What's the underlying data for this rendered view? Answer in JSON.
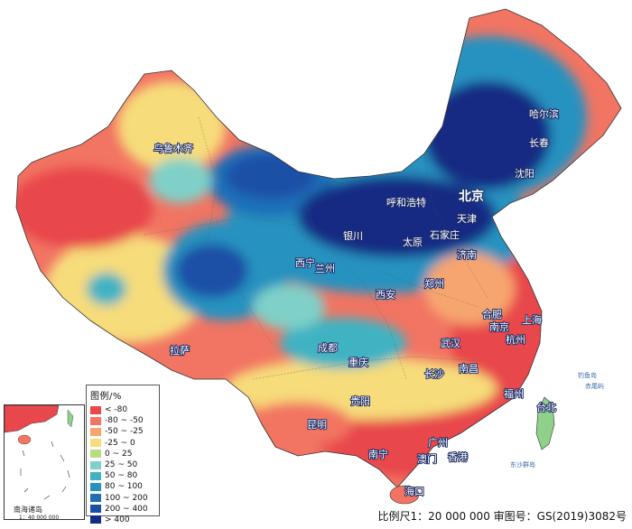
{
  "legend": {
    "title": "图例/%",
    "items": [
      {
        "label": "< -80",
        "color": "#e8474c"
      },
      {
        "label": "-80 ~ -50",
        "color": "#f27462"
      },
      {
        "label": "-50 ~ -25",
        "color": "#f7a56e"
      },
      {
        "label": "-25 ~ 0",
        "color": "#f6dc7a"
      },
      {
        "label": "0 ~ 25",
        "color": "#b9dc82"
      },
      {
        "label": "25 ~ 50",
        "color": "#7fd0c8"
      },
      {
        "label": "50 ~ 80",
        "color": "#3fb3c2"
      },
      {
        "label": "80 ~ 100",
        "color": "#2592c0"
      },
      {
        "label": "100 ~ 200",
        "color": "#1f6fb8"
      },
      {
        "label": "200 ~ 400",
        "color": "#1a4fa6"
      },
      {
        "label": "> 400",
        "color": "#132c84"
      }
    ]
  },
  "cities": [
    {
      "id": "beijing",
      "label": "北京",
      "big": true
    },
    {
      "id": "tianjin",
      "label": "天津"
    },
    {
      "id": "shijiazhuang",
      "label": "石家庄"
    },
    {
      "id": "taiyuan",
      "label": "太原"
    },
    {
      "id": "hohhot",
      "label": "呼和浩特"
    },
    {
      "id": "jinan",
      "label": "济南"
    },
    {
      "id": "yinchuan",
      "label": "银川"
    },
    {
      "id": "xining",
      "label": "西宁"
    },
    {
      "id": "lanzhou",
      "label": "兰州"
    },
    {
      "id": "xian",
      "label": "西安"
    },
    {
      "id": "zhengzhou",
      "label": "郑州"
    },
    {
      "id": "hefei",
      "label": "合肥"
    },
    {
      "id": "nanjing",
      "label": "南京"
    },
    {
      "id": "shanghai",
      "label": "上海"
    },
    {
      "id": "hangzhou",
      "label": "杭州"
    },
    {
      "id": "wuhan",
      "label": "武汉"
    },
    {
      "id": "chengdu",
      "label": "成都"
    },
    {
      "id": "chongqing",
      "label": "重庆"
    },
    {
      "id": "changsha",
      "label": "长沙"
    },
    {
      "id": "nanchang",
      "label": "南昌"
    },
    {
      "id": "fuzhou",
      "label": "福州"
    },
    {
      "id": "guiyang",
      "label": "贵阳"
    },
    {
      "id": "kunming",
      "label": "昆明"
    },
    {
      "id": "nanning",
      "label": "南宁"
    },
    {
      "id": "guangzhou",
      "label": "广州"
    },
    {
      "id": "macau",
      "label": "澳门"
    },
    {
      "id": "hongkong",
      "label": "香港"
    },
    {
      "id": "haikou",
      "label": "海口"
    },
    {
      "id": "taipei",
      "label": "台北"
    },
    {
      "id": "lhasa",
      "label": "拉萨"
    },
    {
      "id": "urumqi",
      "label": "乌鲁木齐"
    },
    {
      "id": "harbin",
      "label": "哈尔滨"
    },
    {
      "id": "changchun",
      "label": "长春"
    },
    {
      "id": "shenyang",
      "label": "沈阳"
    }
  ],
  "inset": {
    "title": "南海诸岛",
    "scale": "1：40 000 000"
  },
  "footer": "比例尺1：20 000 000  审图号：GS(2019)3082号"
}
